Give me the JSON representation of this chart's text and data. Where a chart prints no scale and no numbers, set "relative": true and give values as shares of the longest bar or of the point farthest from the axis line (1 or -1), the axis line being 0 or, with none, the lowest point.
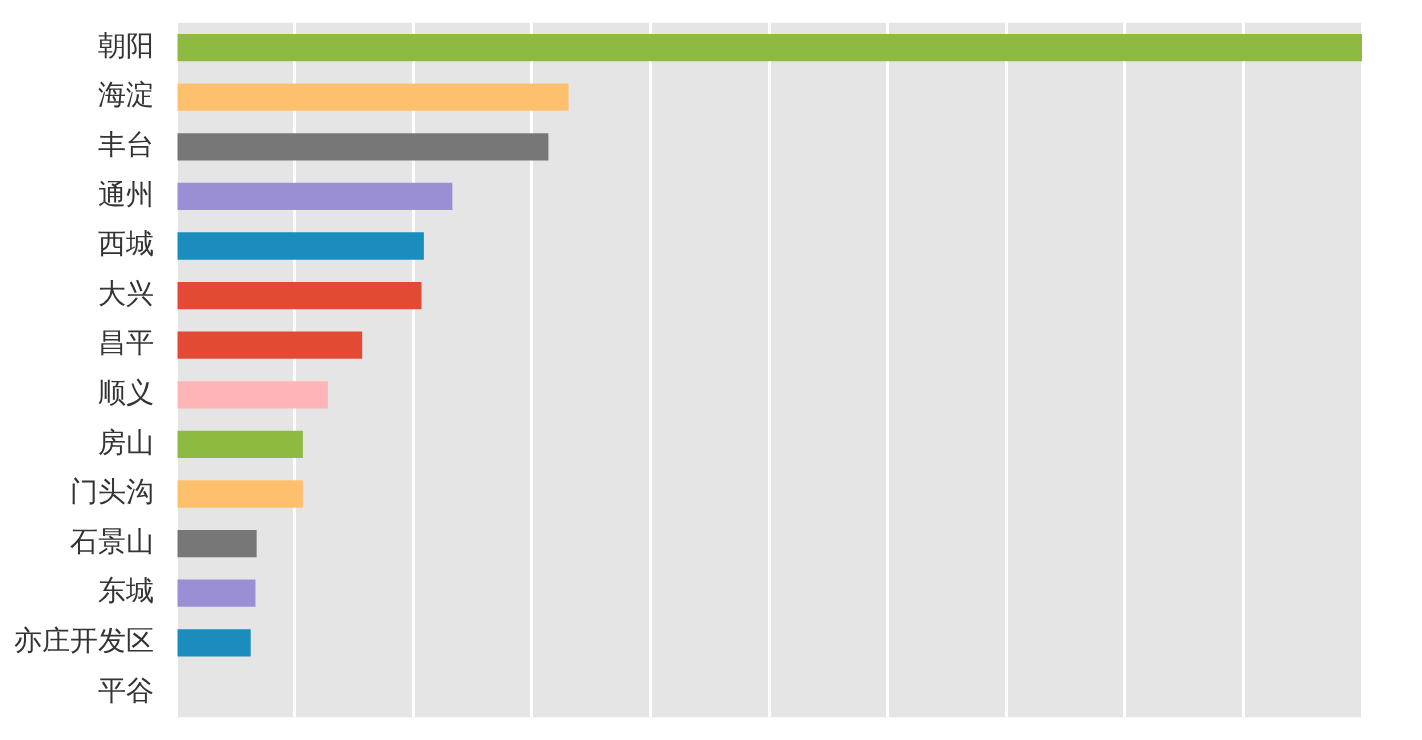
{
  "chart_data": {
    "type": "bar",
    "orientation": "horizontal",
    "relative": true,
    "grid": "x",
    "categories": [
      "朝阳",
      "海淀",
      "丰台",
      "通州",
      "西城",
      "大兴",
      "昌平",
      "顺义",
      "房山",
      "门头沟",
      "石景山",
      "东城",
      "亦庄开发区",
      "平谷"
    ],
    "values": [
      1,
      0.331,
      0.314,
      0.233,
      0.209,
      0.207,
      0.157,
      0.128,
      0.107,
      0.107,
      0.068,
      0.067,
      0.063,
      0
    ],
    "colors": [
      "#8eba42",
      "#ffc06e",
      "#777777",
      "#9a8fd5",
      "#1a8cbd",
      "#e24a33",
      "#e24a33",
      "#ffb5b8",
      "#8eba42",
      "#ffc06e",
      "#777777",
      "#9a8fd5",
      "#1a8cbd",
      "#e24a33"
    ]
  }
}
